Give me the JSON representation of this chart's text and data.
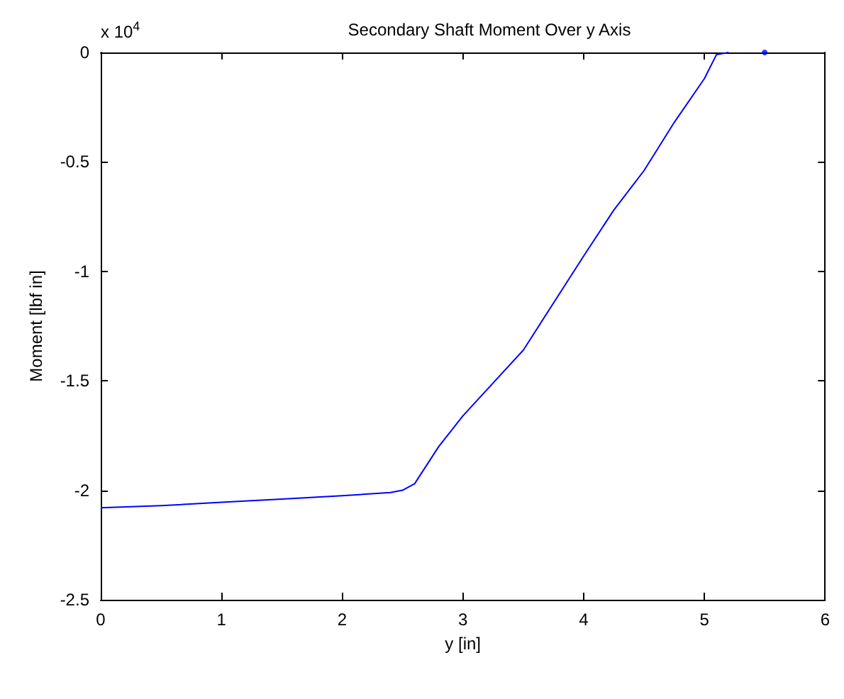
{
  "chart_data": {
    "type": "line",
    "title": "Secondary Shaft Moment Over y Axis",
    "xlabel": "y [in]",
    "ylabel": "Moment [lbf in]",
    "annotations": [
      "x 10$^{4}$"
    ],
    "xlim": [
      0,
      6
    ],
    "xticks": [
      0,
      1,
      2,
      3,
      4,
      5,
      6
    ],
    "ylim": [
      -2.5,
      0
    ],
    "yticks": [
      -2.5,
      -2,
      -1.5,
      -1,
      -0.5,
      0
    ],
    "grid": false,
    "marker": "none",
    "line_style": "solid",
    "series": [
      {
        "color": "#0000ff",
        "x": [
          0,
          0.5,
          1,
          1.5,
          2,
          2.4,
          2.5,
          2.6,
          2.8,
          3,
          3.5,
          4,
          4.25,
          4.5,
          4.75,
          5,
          5.1,
          5.2
        ],
        "values": [
          -2.08,
          -2.07,
          -2.055,
          -2.04,
          -2.025,
          -2.01,
          -2.0,
          -1.97,
          -1.8,
          -1.66,
          -1.36,
          -0.93,
          -0.72,
          -0.54,
          -0.32,
          -0.12,
          -0.01,
          0
        ]
      },
      {
        "type": "scatter",
        "marker": "circle",
        "color": "#0000ff",
        "x": [
          5.5
        ],
        "values": [
          0
        ]
      }
    ]
  }
}
